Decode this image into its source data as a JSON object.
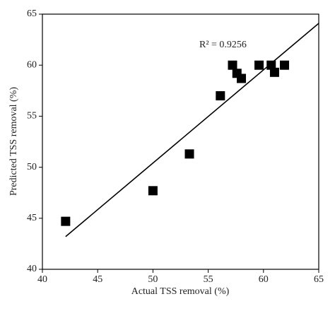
{
  "chart_data": {
    "type": "scatter",
    "x_label": "Actual TSS removal (%)",
    "y_label": "Predicted TSS removal (%)",
    "annotation": "R² = 0.9256",
    "series": [
      {
        "color": "#000000",
        "x": [
          42.1,
          50.0,
          53.3,
          56.1,
          57.2,
          57.6,
          58.0,
          59.6,
          60.7,
          61.0,
          61.9
        ],
        "values": [
          44.7,
          47.7,
          51.3,
          57.0,
          60.0,
          59.2,
          58.7,
          60.0,
          60.0,
          59.3,
          60.0
        ]
      }
    ],
    "trendline": {
      "color": "#000000",
      "x": [
        42.1,
        65
      ],
      "values": [
        43.2,
        64.1
      ]
    },
    "xlim": [
      40,
      65
    ],
    "xticks": [
      40,
      45,
      50,
      55,
      60,
      65
    ],
    "ylim": [
      40,
      65
    ],
    "yticks": [
      40,
      45,
      50,
      55,
      60,
      65
    ],
    "grid": false
  }
}
